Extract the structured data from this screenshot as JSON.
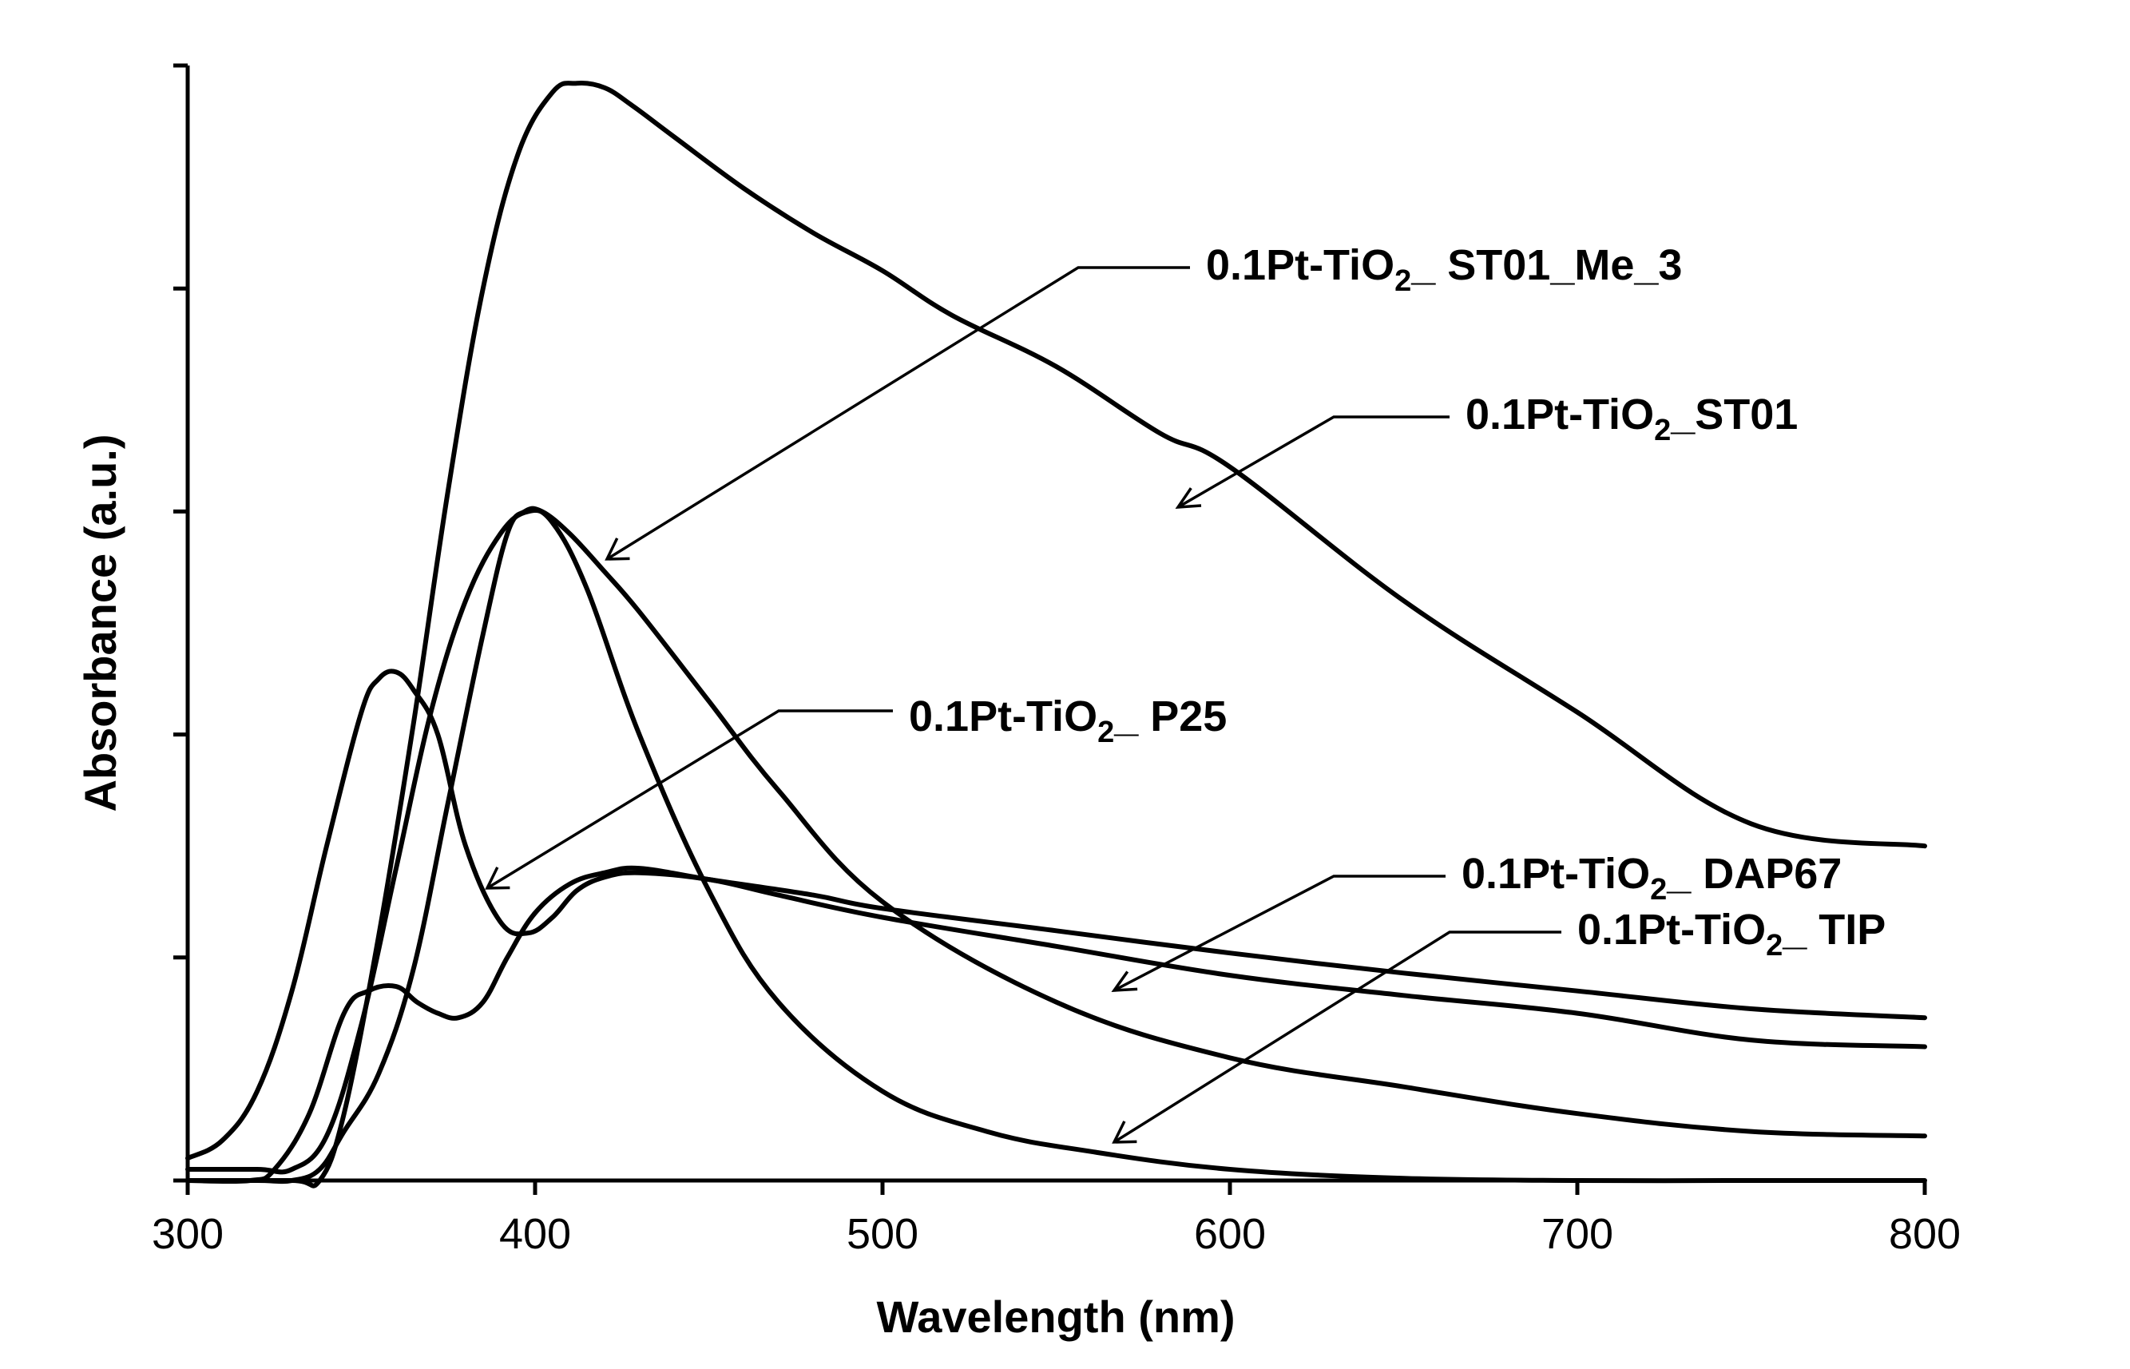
{
  "chart_data": {
    "type": "line",
    "title": "",
    "xlabel": "Wavelength (nm)",
    "ylabel": "Absorbance (a.u.)",
    "xlim": [
      300,
      800
    ],
    "ylim": [
      0,
      5
    ],
    "x_ticks": [
      300,
      400,
      500,
      600,
      700,
      800
    ],
    "y_ticks": [
      0,
      1,
      2,
      3,
      4,
      5
    ],
    "y_tick_labels_shown": false,
    "grid": false,
    "legend": "none",
    "series": [
      {
        "name": "0.1Pt-TiO2_ ST01_Me_3",
        "label_main": "0.1Pt-TiO",
        "label_sub": "2",
        "label_suffix": "_ ST01_Me_3",
        "x": [
          300,
          320,
          330,
          338,
          345,
          355,
          365,
          375,
          385,
          392,
          397,
          402,
          410,
          420,
          430,
          450,
          470,
          500,
          550,
          600,
          650,
          700,
          750,
          800
        ],
        "y": [
          0,
          0,
          0,
          0.05,
          0.22,
          0.48,
          0.95,
          1.7,
          2.45,
          2.9,
          3.0,
          3.0,
          2.9,
          2.73,
          2.55,
          2.15,
          1.75,
          1.25,
          0.8,
          0.55,
          0.42,
          0.3,
          0.22,
          0.2
        ]
      },
      {
        "name": "0.1Pt-TiO2_ST01",
        "label_main": "0.1Pt-TiO",
        "label_sub": "2",
        "label_suffix": "_ST01",
        "x": [
          300,
          330,
          338,
          345,
          355,
          365,
          375,
          385,
          395,
          405,
          412,
          420,
          428,
          440,
          460,
          480,
          500,
          520,
          550,
          580,
          600,
          650,
          700,
          750,
          800
        ],
        "y": [
          0,
          0,
          0,
          0.3,
          1.1,
          2.05,
          3.1,
          4.0,
          4.6,
          4.88,
          4.92,
          4.9,
          4.82,
          4.68,
          4.45,
          4.25,
          4.08,
          3.88,
          3.65,
          3.35,
          3.2,
          2.6,
          2.1,
          1.6,
          1.5
        ]
      },
      {
        "name": "0.1Pt-TiO2_ P25",
        "label_main": "0.1Pt-TiO",
        "label_sub": "2",
        "label_suffix": "_ P25",
        "x": [
          300,
          310,
          320,
          330,
          340,
          350,
          355,
          360,
          365,
          372,
          380,
          390,
          398,
          405,
          412,
          420,
          430,
          450,
          470,
          500,
          550,
          600,
          650,
          700,
          750,
          800
        ],
        "y": [
          0.1,
          0.18,
          0.4,
          0.85,
          1.5,
          2.1,
          2.25,
          2.28,
          2.2,
          2.0,
          1.5,
          1.16,
          1.11,
          1.18,
          1.3,
          1.36,
          1.38,
          1.35,
          1.28,
          1.18,
          1.05,
          0.92,
          0.83,
          0.75,
          0.63,
          0.6
        ]
      },
      {
        "name": "0.1Pt-TiO2_ DAP67",
        "label_main": "0.1Pt-TiO",
        "label_sub": "2",
        "label_suffix": "_ DAP67",
        "x": [
          300,
          318,
          325,
          335,
          345,
          352,
          360,
          366,
          372,
          378,
          385,
          392,
          400,
          410,
          420,
          430,
          450,
          480,
          500,
          550,
          600,
          650,
          700,
          750,
          800
        ],
        "y": [
          0,
          0,
          0.05,
          0.3,
          0.75,
          0.85,
          0.87,
          0.8,
          0.75,
          0.73,
          0.8,
          1.0,
          1.2,
          1.33,
          1.38,
          1.4,
          1.35,
          1.28,
          1.22,
          1.12,
          1.02,
          0.93,
          0.85,
          0.77,
          0.73
        ]
      },
      {
        "name": "0.1Pt-TiO2_ TIP",
        "label_main": "0.1Pt-TiO",
        "label_sub": "2",
        "label_suffix": "_ TIP",
        "x": [
          300,
          320,
          330,
          340,
          350,
          360,
          370,
          380,
          390,
          398,
          405,
          415,
          430,
          450,
          470,
          500,
          530,
          560,
          600,
          650,
          700,
          750,
          800
        ],
        "y": [
          0.05,
          0.05,
          0.05,
          0.2,
          0.7,
          1.4,
          2.1,
          2.6,
          2.9,
          3.0,
          2.95,
          2.65,
          2.0,
          1.3,
          0.8,
          0.4,
          0.22,
          0.13,
          0.05,
          0.01,
          0,
          0,
          0
        ]
      }
    ],
    "annotations": [
      {
        "series": "0.1Pt-TiO2_ ST01_Me_3",
        "arrow_at": [
          420,
          2.78
        ]
      },
      {
        "series": "0.1Pt-TiO2_ST01",
        "arrow_at": [
          582,
          3.0
        ]
      },
      {
        "series": "0.1Pt-TiO2_ P25",
        "arrow_at": [
          386,
          1.29
        ]
      },
      {
        "series": "0.1Pt-TiO2_ DAP67",
        "arrow_at": [
          570,
          0.85
        ]
      },
      {
        "series": "0.1Pt-TiO2_ TIP",
        "arrow_at": [
          566,
          0.17
        ]
      }
    ]
  }
}
